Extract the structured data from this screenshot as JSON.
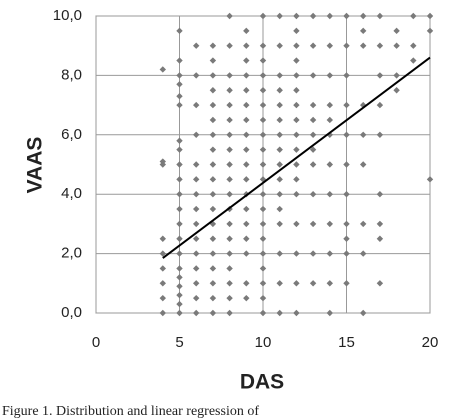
{
  "chart_data": {
    "type": "scatter",
    "x_label": "DAS",
    "y_label": "VAAS",
    "caption": "Figure 1. Distribution and linear regression of",
    "xlim": [
      0,
      20
    ],
    "ylim": [
      0,
      10
    ],
    "xticks": [
      0,
      5,
      10,
      15,
      20
    ],
    "yticks": [
      {
        "value": 0,
        "label": "0,0"
      },
      {
        "value": 2,
        "label": "2,0"
      },
      {
        "value": 4,
        "label": "4,0"
      },
      {
        "value": 6,
        "label": "6,0"
      },
      {
        "value": 8,
        "label": "8,0"
      },
      {
        "value": 10,
        "label": "10,0"
      }
    ],
    "grid": true,
    "color": "#7a7a7a",
    "x": [
      4,
      4,
      4,
      4,
      4,
      4,
      4,
      4,
      4,
      5,
      5,
      5,
      5,
      5,
      5,
      5,
      5,
      5,
      5,
      5,
      5,
      5,
      5,
      5,
      5,
      5,
      5,
      5,
      5,
      5,
      6,
      6,
      6,
      6,
      6,
      6,
      6,
      6,
      6,
      6,
      6,
      6,
      6,
      6,
      6,
      7,
      7,
      7,
      7,
      7,
      7,
      7,
      7,
      7,
      7,
      7,
      7,
      7,
      7,
      7,
      7,
      7,
      7,
      7,
      8,
      8,
      8,
      8,
      8,
      8,
      8,
      8,
      8,
      8,
      8,
      8,
      8,
      8,
      8,
      8,
      8,
      8,
      8,
      9,
      9,
      9,
      9,
      9,
      9,
      9,
      9,
      9,
      9,
      9,
      9,
      9,
      9,
      9,
      9,
      9,
      9,
      10,
      10,
      10,
      10,
      10,
      10,
      10,
      10,
      10,
      10,
      10,
      10,
      10,
      10,
      10,
      10,
      10,
      10,
      10,
      10,
      11,
      11,
      11,
      11,
      11,
      11,
      11,
      11,
      11,
      11,
      11,
      11,
      11,
      11,
      11,
      11,
      12,
      12,
      12,
      12,
      12,
      12,
      12,
      12,
      12,
      12,
      12,
      12,
      12,
      12,
      12,
      12,
      12,
      13,
      13,
      13,
      13,
      13,
      13,
      13,
      13,
      13,
      13,
      13,
      13,
      14,
      14,
      14,
      14,
      14,
      14,
      14,
      14,
      14,
      14,
      14,
      14,
      15,
      15,
      15,
      15,
      15,
      15,
      15,
      15,
      15,
      15,
      15,
      16,
      16,
      16,
      16,
      16,
      16,
      16,
      16,
      16,
      17,
      17,
      17,
      17,
      17,
      17,
      17,
      17,
      17,
      18,
      18,
      18,
      18,
      19,
      19,
      19,
      20,
      20,
      20
    ],
    "values": [
      0,
      0.5,
      1,
      1.5,
      2,
      2.5,
      5,
      5.1,
      8.2,
      0,
      0.3,
      0.6,
      0.9,
      1.2,
      1.5,
      2,
      2.5,
      3,
      3.5,
      4,
      4.5,
      5,
      5.5,
      5.8,
      7,
      7.3,
      7.7,
      8,
      8.5,
      9.5,
      0,
      0.5,
      1,
      1.5,
      2,
      2.5,
      3,
      3.5,
      4,
      4.5,
      5,
      6,
      7,
      8,
      9,
      0,
      0.5,
      1,
      1.5,
      2,
      2.5,
      3,
      3.5,
      4,
      4.5,
      5,
      5.5,
      6,
      6.5,
      7,
      7.5,
      8,
      8.5,
      9,
      0,
      0.5,
      1,
      1.5,
      2,
      2.5,
      3,
      3.5,
      4,
      4.5,
      5,
      5.5,
      6,
      6.5,
      7,
      7.5,
      8,
      9,
      10,
      0.5,
      1,
      2,
      2.5,
      3,
      3.5,
      4,
      4.5,
      5,
      5.5,
      6,
      6.5,
      7,
      7.5,
      8,
      8.5,
      9,
      9.5,
      0,
      0.5,
      1,
      1.5,
      2,
      2.5,
      3,
      3.5,
      4,
      4.5,
      5,
      5.5,
      6,
      6.5,
      7,
      7.5,
      8,
      8.5,
      9,
      10,
      0,
      1,
      2,
      3,
      3.5,
      4,
      4.5,
      5,
      5.5,
      6,
      6.5,
      7,
      7.5,
      8,
      9,
      10,
      0,
      1,
      2,
      3,
      4,
      4.5,
      5,
      5.5,
      6,
      6.5,
      7,
      7.5,
      8,
      8.5,
      9,
      9.5,
      10,
      1,
      2,
      3,
      4,
      5,
      5.5,
      6,
      6.5,
      7,
      8,
      9,
      10,
      0,
      1,
      2,
      3,
      4,
      5,
      6,
      6.5,
      7,
      8,
      9,
      10,
      1,
      2,
      2.5,
      3,
      4,
      5,
      6,
      7,
      8,
      9,
      10,
      0,
      2,
      3,
      5,
      6,
      7,
      9,
      9.5,
      10,
      1,
      2.5,
      3,
      4,
      6,
      7,
      8,
      9,
      10,
      7.5,
      8,
      9,
      9.5,
      8.5,
      9,
      10,
      4.5,
      9.5,
      10
    ],
    "trendline": {
      "x": [
        4,
        20
      ],
      "values": [
        1.85,
        8.6
      ],
      "color": "#000000"
    }
  }
}
